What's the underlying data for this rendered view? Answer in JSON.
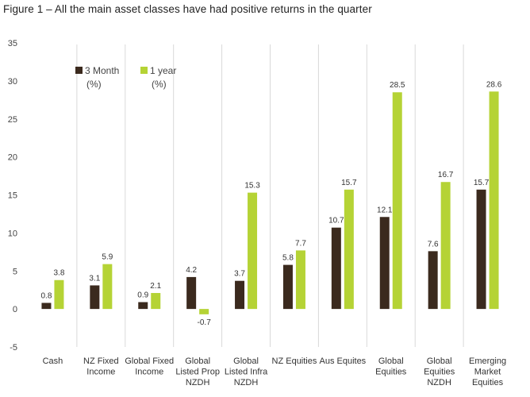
{
  "figure_title": "Figure 1 – All the main asset classes have had positive returns in the quarter",
  "chart_data": {
    "type": "bar",
    "title": "Figure 1 – All the main asset classes have had positive returns in the quarter",
    "xlabel": "",
    "ylabel": "",
    "ylim": [
      -5,
      35
    ],
    "yticks": [
      -5,
      0,
      5,
      10,
      15,
      20,
      25,
      30,
      35
    ],
    "grid": "vertical separators",
    "legend_position": "top-left",
    "categories": [
      [
        "Cash"
      ],
      [
        "NZ Fixed",
        "Income"
      ],
      [
        "Global Fixed",
        "Income"
      ],
      [
        "Global",
        "Listed Prop",
        "NZDH"
      ],
      [
        "Global",
        "Listed Infra",
        "NZDH"
      ],
      [
        "NZ Equities"
      ],
      [
        "Aus Equites"
      ],
      [
        "Global",
        "Equities"
      ],
      [
        "Global",
        "Equities",
        "NZDH"
      ],
      [
        "Emerging",
        "Market",
        "Equities"
      ]
    ],
    "series": [
      {
        "name": [
          "3 Month",
          "(%)"
        ],
        "color": "#3b2a1e",
        "values": [
          0.8,
          3.1,
          0.9,
          4.2,
          3.7,
          5.8,
          10.7,
          12.1,
          7.6,
          15.7
        ],
        "labels": [
          "0.8",
          "3.1",
          "0.9",
          "4.2",
          "3.7",
          "5.8",
          "10.7",
          "12.1",
          "7.6",
          "15.7"
        ]
      },
      {
        "name": [
          "1 year",
          "(%)"
        ],
        "color": "#b5d335",
        "values": [
          3.8,
          5.9,
          2.1,
          -0.7,
          15.3,
          7.7,
          15.7,
          28.5,
          16.7,
          28.6
        ],
        "labels": [
          "3.8",
          "5.9",
          "2.1",
          "-0.7",
          "15.3",
          "7.7",
          "15.7",
          "28.5",
          "16.7",
          "28.6"
        ]
      }
    ]
  }
}
